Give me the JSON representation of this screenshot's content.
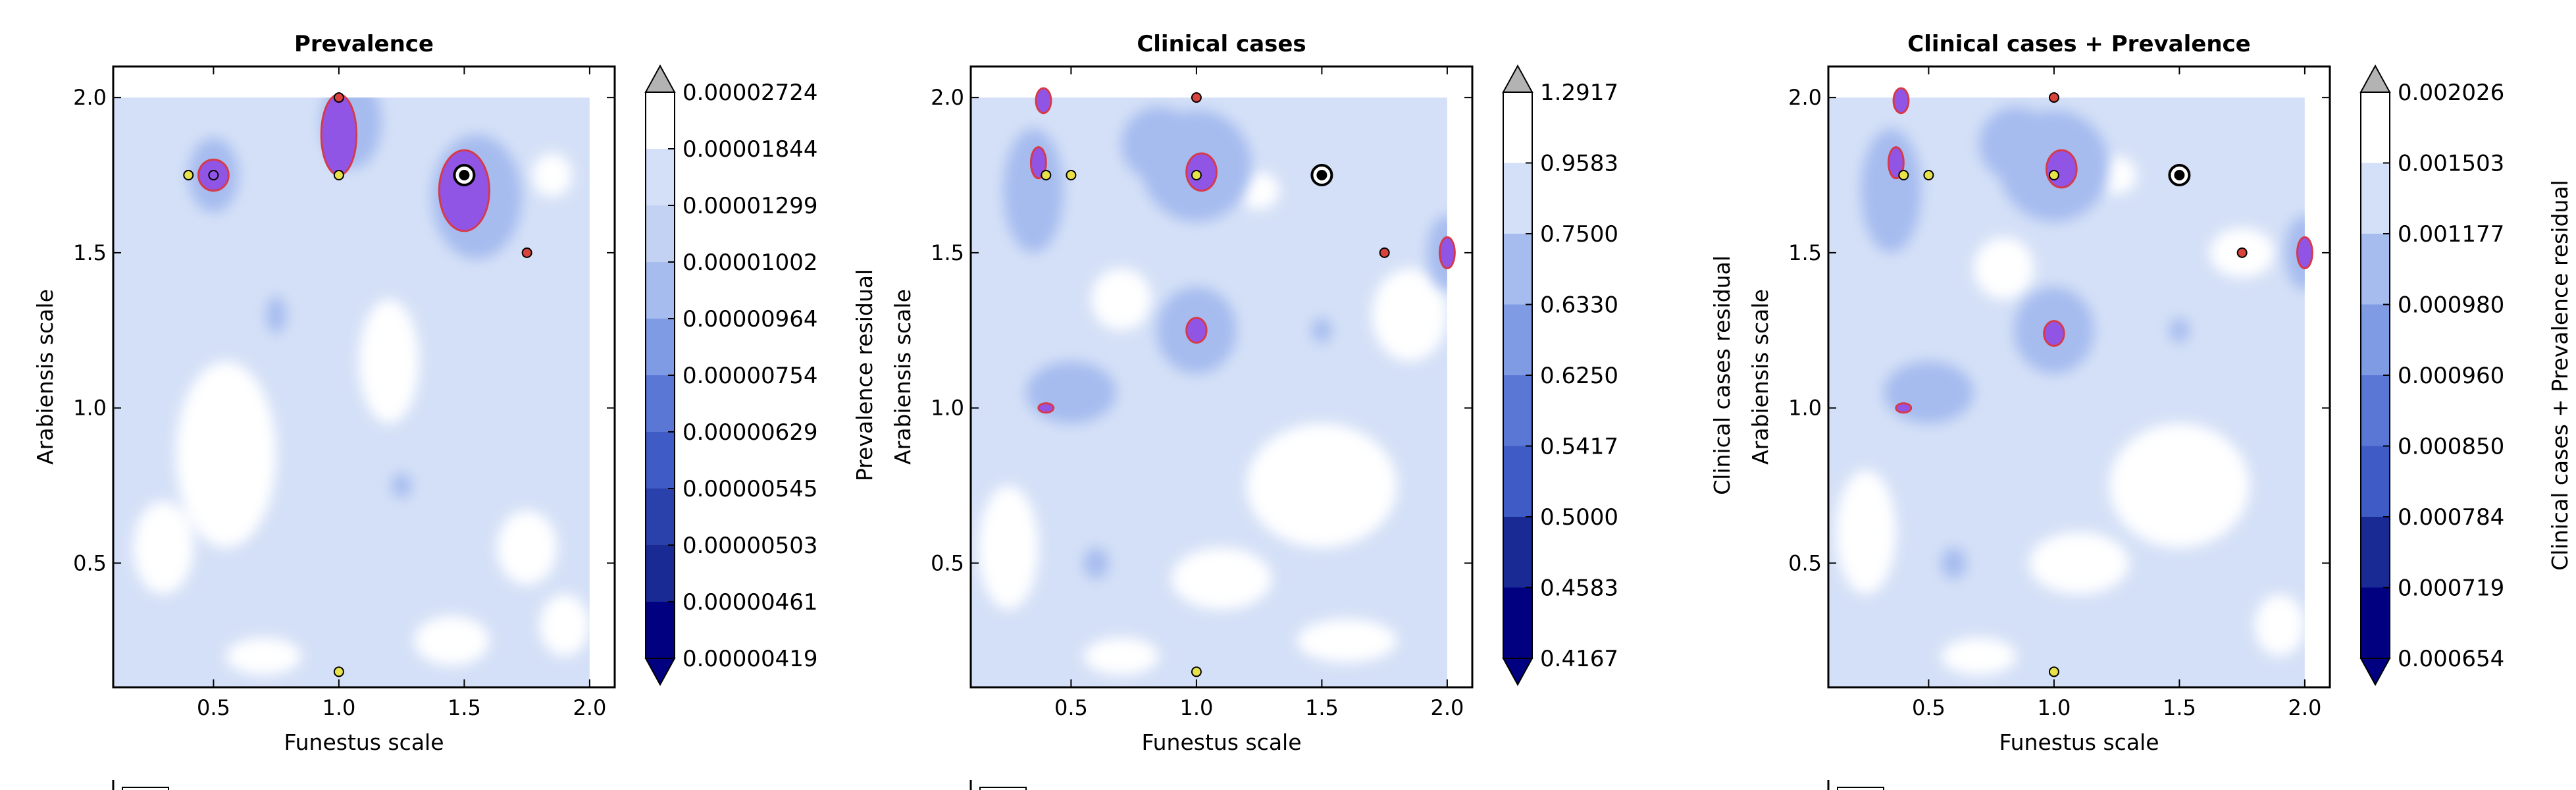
{
  "chart_data": [
    {
      "type": "contour",
      "title": "Prevalence",
      "xlabel": "Funestus scale",
      "ylabel": "Arabiensis scale",
      "xlim": [
        0.1,
        2.1
      ],
      "ylim": [
        0.1,
        2.1
      ],
      "xticks": [
        "0.5",
        "1.0",
        "1.5",
        "2.0"
      ],
      "yticks": [
        "0.5",
        "1.0",
        "1.5",
        "2.0"
      ],
      "colorbar_label": "Prevalence residual",
      "colorbar_levels": [
        "0.00002724",
        "0.00001844",
        "0.00001299",
        "0.00001002",
        "0.00000964",
        "0.00000754",
        "0.00000629",
        "0.00000545",
        "0.00000503",
        "0.00000461",
        "0.00000419"
      ],
      "points": [
        {
          "x": 1.0,
          "y": 2.0,
          "kind": "red"
        },
        {
          "x": 0.4,
          "y": 1.75,
          "kind": "yellow"
        },
        {
          "x": 0.5,
          "y": 1.75,
          "kind": "purple"
        },
        {
          "x": 1.0,
          "y": 1.75,
          "kind": "yellow"
        },
        {
          "x": 1.5,
          "y": 1.75,
          "kind": "best"
        },
        {
          "x": 1.75,
          "y": 1.5,
          "kind": "red"
        },
        {
          "x": 1.0,
          "y": 0.15,
          "kind": "yellow"
        }
      ],
      "highlight_regions": [
        {
          "cx": 0.5,
          "cy": 1.75,
          "rx": 0.06,
          "ry": 0.05
        },
        {
          "cx": 1.5,
          "cy": 1.7,
          "rx": 0.1,
          "ry": 0.13
        },
        {
          "cx": 1.0,
          "cy": 1.88,
          "rx": 0.07,
          "ry": 0.13
        }
      ]
    },
    {
      "type": "contour",
      "title": "Clinical cases",
      "xlabel": "Funestus scale",
      "ylabel": "Arabiensis scale",
      "xlim": [
        0.1,
        2.1
      ],
      "ylim": [
        0.1,
        2.1
      ],
      "xticks": [
        "0.5",
        "1.0",
        "1.5",
        "2.0"
      ],
      "yticks": [
        "0.5",
        "1.0",
        "1.5",
        "2.0"
      ],
      "colorbar_label": "Clinical cases residual",
      "colorbar_levels": [
        "1.2917",
        "0.9583",
        "0.7500",
        "0.6330",
        "0.6250",
        "0.5417",
        "0.5000",
        "0.4583",
        "0.4167"
      ],
      "points": [
        {
          "x": 1.0,
          "y": 2.0,
          "kind": "red"
        },
        {
          "x": 0.4,
          "y": 1.75,
          "kind": "yellow"
        },
        {
          "x": 0.5,
          "y": 1.75,
          "kind": "yellow"
        },
        {
          "x": 1.0,
          "y": 1.75,
          "kind": "yellow"
        },
        {
          "x": 1.5,
          "y": 1.75,
          "kind": "best"
        },
        {
          "x": 1.75,
          "y": 1.5,
          "kind": "red"
        },
        {
          "x": 1.0,
          "y": 0.15,
          "kind": "yellow"
        }
      ],
      "highlight_regions": [
        {
          "cx": 1.02,
          "cy": 1.76,
          "rx": 0.06,
          "ry": 0.06
        },
        {
          "cx": 1.0,
          "cy": 1.25,
          "rx": 0.04,
          "ry": 0.04
        },
        {
          "cx": 0.37,
          "cy": 1.79,
          "rx": 0.03,
          "ry": 0.05
        },
        {
          "cx": 0.39,
          "cy": 1.99,
          "rx": 0.03,
          "ry": 0.04
        },
        {
          "cx": 2.0,
          "cy": 1.5,
          "rx": 0.03,
          "ry": 0.05
        },
        {
          "cx": 0.4,
          "cy": 1.0,
          "rx": 0.03,
          "ry": 0.015
        }
      ]
    },
    {
      "type": "contour",
      "title": "Clinical cases + Prevalence",
      "xlabel": "Funestus scale",
      "ylabel": "Arabiensis scale",
      "xlim": [
        0.1,
        2.1
      ],
      "ylim": [
        0.1,
        2.1
      ],
      "xticks": [
        "0.5",
        "1.0",
        "1.5",
        "2.0"
      ],
      "yticks": [
        "0.5",
        "1.0",
        "1.5",
        "2.0"
      ],
      "colorbar_label": "Clinical cases + Prevalence residual",
      "colorbar_levels": [
        "0.002026",
        "0.001503",
        "0.001177",
        "0.000980",
        "0.000960",
        "0.000850",
        "0.000784",
        "0.000719",
        "0.000654"
      ],
      "points": [
        {
          "x": 1.0,
          "y": 2.0,
          "kind": "red"
        },
        {
          "x": 0.4,
          "y": 1.75,
          "kind": "yellow"
        },
        {
          "x": 0.5,
          "y": 1.75,
          "kind": "yellow"
        },
        {
          "x": 1.0,
          "y": 1.75,
          "kind": "yellow"
        },
        {
          "x": 1.5,
          "y": 1.75,
          "kind": "best"
        },
        {
          "x": 1.75,
          "y": 1.5,
          "kind": "red"
        },
        {
          "x": 1.0,
          "y": 0.15,
          "kind": "yellow"
        }
      ],
      "highlight_regions": [
        {
          "cx": 1.03,
          "cy": 1.77,
          "rx": 0.06,
          "ry": 0.06
        },
        {
          "cx": 1.0,
          "cy": 1.24,
          "rx": 0.04,
          "ry": 0.04
        },
        {
          "cx": 0.37,
          "cy": 1.79,
          "rx": 0.03,
          "ry": 0.05
        },
        {
          "cx": 0.39,
          "cy": 1.99,
          "rx": 0.03,
          "ry": 0.04
        },
        {
          "cx": 2.0,
          "cy": 1.5,
          "rx": 0.03,
          "ry": 0.05
        },
        {
          "cx": 0.4,
          "cy": 1.0,
          "rx": 0.03,
          "ry": 0.015
        }
      ]
    }
  ],
  "palette": {
    "white": "#ffffff",
    "pale": "#d4e0f7",
    "mid": "#a6bcef",
    "deep": "#7f9be3",
    "dark": "#000080",
    "highlight_fill": "#9155e6",
    "highlight_edge": "#d63a4a",
    "marker_red": "#d8433c",
    "marker_yellow": "#e8e24a",
    "over_cap": "#b3b3b3"
  },
  "colorbar_band_colors": [
    "#ffffff",
    "#d4e0f7",
    "#c3d2f3",
    "#a6bcef",
    "#7f9be3",
    "#5a77d6",
    "#3f5cc6",
    "#2a40aa",
    "#1a2a95",
    "#000080"
  ]
}
